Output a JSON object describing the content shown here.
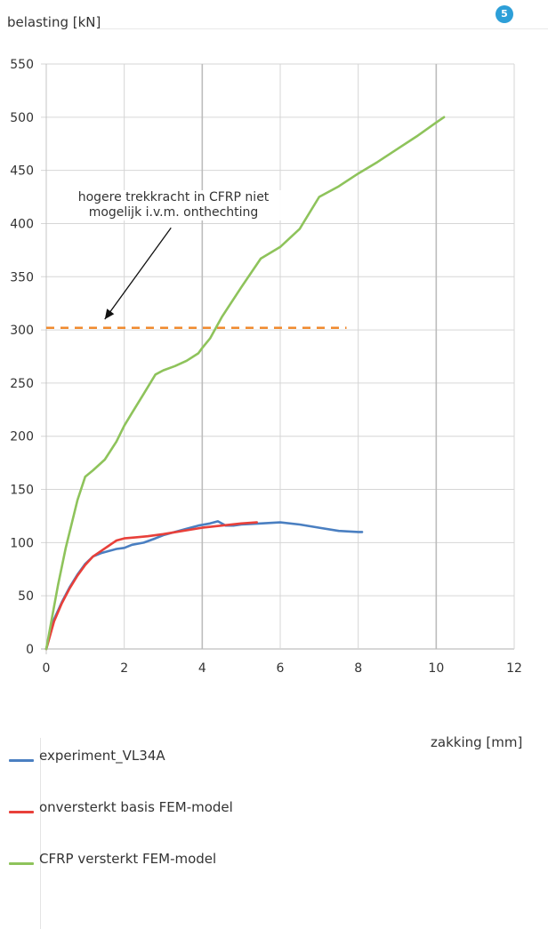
{
  "page_badge": "5",
  "chart_data": {
    "type": "line",
    "title": "",
    "xlabel": "zakking [mm]",
    "ylabel": "belasting [kN]",
    "xlim": [
      0,
      12
    ],
    "ylim": [
      0,
      550
    ],
    "x_ticks": [
      0,
      2,
      4,
      6,
      8,
      10,
      12
    ],
    "y_ticks": [
      0,
      50,
      100,
      150,
      200,
      250,
      300,
      350,
      400,
      450,
      500,
      550
    ],
    "grid": true,
    "legend_position": "bottom-left",
    "series": [
      {
        "name": "experiment_VL34A",
        "color": "#4a7fc1",
        "x": [
          0,
          0.2,
          0.4,
          0.6,
          0.8,
          1.0,
          1.2,
          1.4,
          1.6,
          1.8,
          2.0,
          2.2,
          2.5,
          2.8,
          3.0,
          3.3,
          3.6,
          3.9,
          4.2,
          4.4,
          4.6,
          4.8,
          5.0,
          5.5,
          6.0,
          6.5,
          7.0,
          7.5,
          8.0,
          8.1
        ],
        "y": [
          0,
          28,
          44,
          58,
          70,
          80,
          87,
          90,
          92,
          94,
          95,
          98,
          100,
          104,
          107,
          110,
          113,
          116,
          118,
          120,
          116,
          116,
          117,
          118,
          119,
          117,
          114,
          111,
          110,
          110
        ]
      },
      {
        "name": "onversterkt basis FEM-model",
        "color": "#e8403a",
        "x": [
          0,
          0.2,
          0.4,
          0.6,
          0.8,
          1.0,
          1.2,
          1.4,
          1.6,
          1.8,
          2.0,
          2.3,
          2.6,
          3.0,
          3.5,
          4.0,
          4.5,
          5.0,
          5.4
        ],
        "y": [
          0,
          26,
          43,
          57,
          69,
          79,
          87,
          92,
          97,
          102,
          104,
          105,
          106,
          108,
          111,
          114,
          116,
          118,
          119
        ]
      },
      {
        "name": "CFRP versterkt FEM-model",
        "color": "#8ec35b",
        "x": [
          0,
          0.3,
          0.5,
          0.8,
          1.0,
          1.2,
          1.5,
          1.8,
          2.0,
          2.2,
          2.5,
          2.8,
          3.0,
          3.3,
          3.6,
          3.9,
          4.0,
          4.2,
          4.5,
          5.0,
          5.5,
          6.0,
          6.5,
          7.0,
          7.5,
          8.0,
          8.5,
          9.0,
          9.5,
          10.0,
          10.2
        ],
        "y": [
          0,
          60,
          95,
          140,
          162,
          168,
          178,
          195,
          210,
          222,
          240,
          258,
          262,
          266,
          271,
          278,
          283,
          292,
          312,
          340,
          367,
          378,
          395,
          425,
          435,
          447,
          458,
          470,
          482,
          495,
          500
        ]
      }
    ],
    "reference_line": {
      "y": 302,
      "x": [
        0,
        7.7
      ],
      "color": "#f08a2e",
      "style": "dashed"
    },
    "annotation": {
      "text_line1": "hogere trekkracht in CFRP niet",
      "text_line2": "mogelijk i.v.m. onthechting",
      "arrow_from": [
        3.2,
        396
      ],
      "arrow_to": [
        1.5,
        310
      ]
    }
  }
}
